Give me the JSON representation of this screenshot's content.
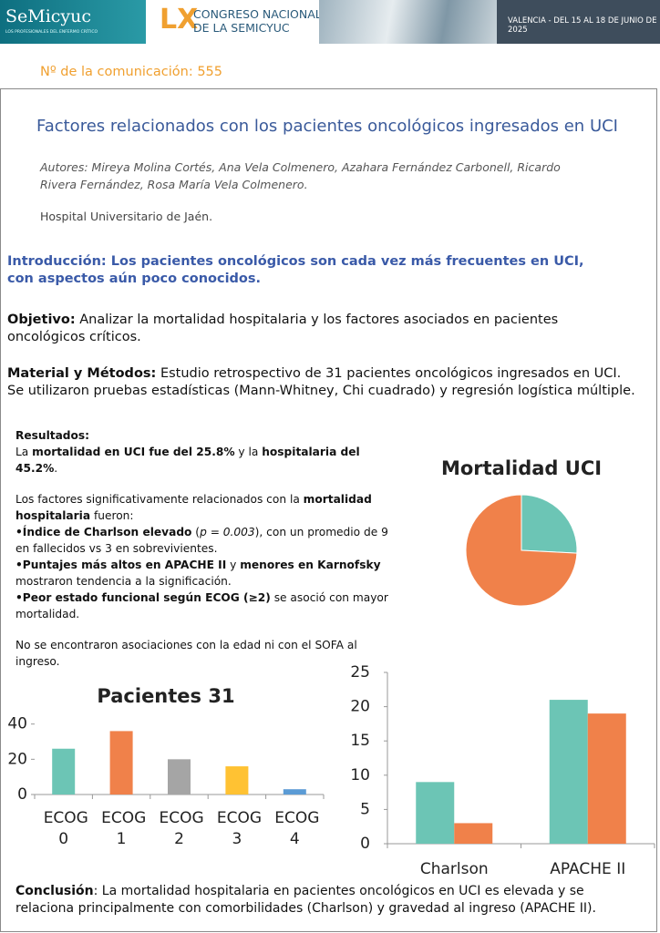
{
  "header": {
    "logo": "SeMicyuc",
    "logo_tagline": "LOS PROFESIONALES DEL ENFERMO CRÍTICO",
    "edition": "LX",
    "congress_line1": "CONGRESO NACIONAL",
    "congress_line2": "DE LA SEMICYUC",
    "venue": "VALENCIA - DEL 15 AL 18 DE JUNIO DE 2025"
  },
  "communication": "Nº de la comunicación: 555",
  "title": "Factores relacionados con los pacientes oncológicos ingresados en UCI",
  "authors": "Autores: Mireya Molina Cortés, Ana Vela Colmenero, Azahara Fernández Carbonell, Ricardo Rivera Fernández, Rosa María Vela Colmenero.",
  "hospital": "Hospital Universitario de Jaén.",
  "sections": [
    [
      {
        "text": "Introducción: Los pacientes oncológicos son cada vez más frecuentes en UCI, con aspectos aún poco conocidos.",
        "bold": true
      }
    ],
    [
      {
        "text": "Objetivo:",
        "bold": true
      },
      " Analizar la mortalidad hospitalaria y los factores asociados en pacientes oncológicos críticos."
    ],
    [
      {
        "text": "Material y Métodos:",
        "bold": true
      },
      " Estudio retrospectivo de 31 pacientes oncológicos ingresados en UCI. Se utilizaron pruebas estadísticas (Mann-Whitney, Chi cuadrado) y regresión logística múltiple."
    ]
  ],
  "results": {
    "heading": "Resultados:",
    "paragraphs": [
      [
        "La ",
        {
          "text": "mortalidad en UCI fue del 25.8%",
          "bold": true
        },
        " y la ",
        {
          "text": "hospitalaria del 45.2%",
          "bold": true
        },
        "."
      ],
      [
        "Los factores significativamente relacionados con la ",
        {
          "text": "mortalidad hospitalaria",
          "bold": true
        },
        " fueron:"
      ],
      [
        {
          "text": "•Índice de Charlson elevado",
          "bold": true
        },
        " (",
        {
          "text": "p = 0.003",
          "italic": true
        },
        "), con un promedio de 9 en fallecidos vs 3 en sobrevivientes."
      ],
      [
        {
          "text": "•Puntajes más altos en APACHE II",
          "bold": true
        },
        " y ",
        {
          "text": "menores en Karnofsky",
          "bold": true
        },
        " mostraron tendencia a la significación."
      ],
      [
        {
          "text": "•Peor estado funcional según ECOG (≥2)",
          "bold": true
        },
        " se asoció con mayor mortalidad."
      ],
      [
        "No se encontraron asociaciones con la edad ni con el SOFA al ingreso."
      ]
    ]
  },
  "conclusion": [
    {
      "text": "Conclusión",
      "bold": true
    },
    ": La mortalidad hospitalaria en pacientes oncológicos en UCI es elevada y se relaciona principalmente con comorbilidades (Charlson) y gravedad al ingreso (APACHE II)."
  ],
  "chart_data": [
    {
      "type": "pie",
      "title": "Mortalidad UCI",
      "values": [
        25.8,
        74.2
      ],
      "colors": [
        "#6cc5b5",
        "#f0814a"
      ]
    },
    {
      "type": "bar",
      "title": "Pacientes 31",
      "categories": [
        "ECOG 0",
        "ECOG 1",
        "ECOG 2",
        "ECOG 3",
        "ECOG 4"
      ],
      "values": [
        26,
        36,
        20,
        16,
        3
      ],
      "colors": [
        "#6cc5b5",
        "#f0814a",
        "#a5a5a5",
        "#ffc233",
        "#5b9bd5"
      ],
      "ylim": [
        0,
        45
      ],
      "yticks": [
        0,
        20,
        40
      ]
    },
    {
      "type": "grouped_bar",
      "categories": [
        "Charlson",
        "APACHE II"
      ],
      "series": [
        {
          "color": "#6cc5b5",
          "values": [
            9,
            21
          ]
        },
        {
          "color": "#f0814a",
          "values": [
            3,
            19
          ]
        }
      ],
      "ylim": [
        0,
        25
      ],
      "yticks": [
        0,
        5,
        10,
        15,
        20,
        25
      ]
    }
  ]
}
